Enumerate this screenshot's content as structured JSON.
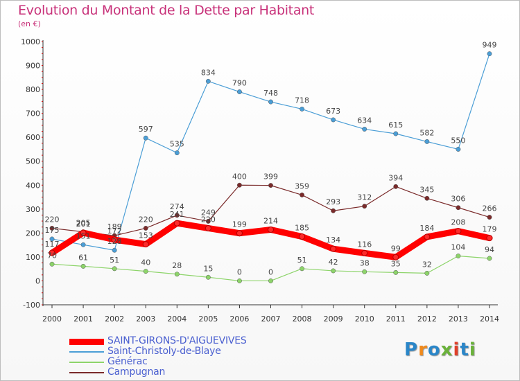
{
  "title": "Evolution du Montant de la Dette par Habitant",
  "unit": "(en €)",
  "logo": {
    "text": "Proxiti",
    "colors": [
      "#2a86c8",
      "#f08a1c",
      "#2a86c8",
      "#6ab23a",
      "#e0402a",
      "#2a86c8",
      "#6ab23a"
    ]
  },
  "chart_data": {
    "type": "line",
    "x": [
      2000,
      2001,
      2002,
      2003,
      2004,
      2005,
      2006,
      2007,
      2008,
      2009,
      2010,
      2011,
      2012,
      2013,
      2014
    ],
    "ylim": [
      -100,
      1000
    ],
    "yticks": [
      -100,
      0,
      100,
      200,
      300,
      400,
      500,
      600,
      700,
      800,
      900,
      1000
    ],
    "grid": false,
    "legend_position": "bottom",
    "series": [
      {
        "name": "SAINT-GIRONS-D'AIGUEVIVES",
        "color": "#ff0000",
        "width": "thick",
        "labeled": true,
        "values": [
          117,
          201,
          172,
          153,
          241,
          220,
          199,
          214,
          185,
          134,
          116,
          99,
          184,
          208,
          179
        ]
      },
      {
        "name": "Saint-Christoly-de-Blaye",
        "color": "#4b9ed6",
        "width": "thin",
        "labeled": true,
        "values": [
          175,
          151,
          128,
          597,
          535,
          834,
          790,
          748,
          718,
          673,
          634,
          615,
          582,
          550,
          949
        ]
      },
      {
        "name": "Générac",
        "color": "#8dd46a",
        "width": "thin",
        "labeled": true,
        "values": [
          70,
          61,
          51,
          40,
          28,
          15,
          0,
          0,
          51,
          42,
          38,
          35,
          32,
          104,
          94
        ]
      },
      {
        "name": "Campugnan",
        "color": "#7a2a2a",
        "width": "thin",
        "labeled": true,
        "values": [
          220,
          205,
          189,
          220,
          274,
          249,
          400,
          399,
          359,
          293,
          312,
          394,
          345,
          306,
          266
        ]
      }
    ]
  }
}
